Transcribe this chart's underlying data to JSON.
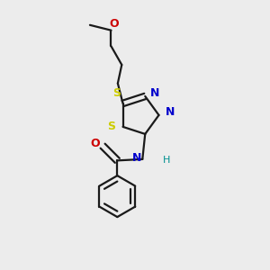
{
  "bg_color": "#ececec",
  "bond_color": "#1a1a1a",
  "S_color": "#cccc00",
  "N_color": "#0000cc",
  "O_color": "#cc0000",
  "NH_N_color": "#0000cc",
  "H_color": "#009090",
  "font_size": 9,
  "lw": 1.6,
  "fig_width": 3.0,
  "fig_height": 3.0,
  "dpi": 100,
  "xlim": [
    0.0,
    1.0
  ],
  "ylim": [
    0.0,
    1.0
  ]
}
